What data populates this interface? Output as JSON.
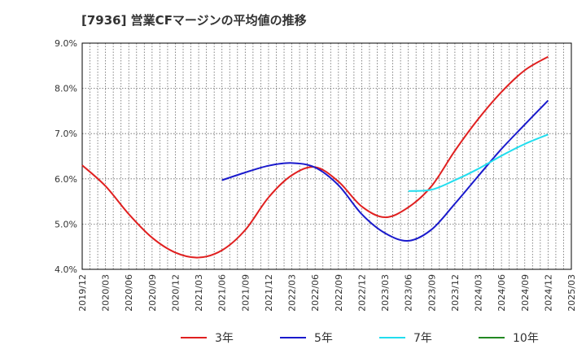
{
  "chart_data": {
    "type": "line",
    "title": "[7936]  営業CFマージンの平均値の推移",
    "xlabel": "",
    "ylabel": "",
    "x_ticks": [
      "2019/12",
      "2020/03",
      "2020/06",
      "2020/09",
      "2020/12",
      "2021/03",
      "2021/06",
      "2021/09",
      "2021/12",
      "2022/03",
      "2022/06",
      "2022/09",
      "2022/12",
      "2023/03",
      "2023/06",
      "2023/09",
      "2023/12",
      "2024/03",
      "2024/06",
      "2024/09",
      "2024/12",
      "2025/03"
    ],
    "y_ticks": [
      "4.0%",
      "5.0%",
      "6.0%",
      "7.0%",
      "8.0%",
      "9.0%"
    ],
    "ylim": [
      4.0,
      9.0
    ],
    "grid": true,
    "legend_position": "bottom",
    "series": [
      {
        "name": "3年",
        "color": "#e02020",
        "points": [
          [
            "2019/12",
            6.3
          ],
          [
            "2020/03",
            5.84
          ],
          [
            "2020/06",
            5.22
          ],
          [
            "2020/09",
            4.7
          ],
          [
            "2020/12",
            4.37
          ],
          [
            "2021/03",
            4.26
          ],
          [
            "2021/06",
            4.42
          ],
          [
            "2021/09",
            4.87
          ],
          [
            "2021/12",
            5.59
          ],
          [
            "2022/03",
            6.08
          ],
          [
            "2022/06",
            6.26
          ],
          [
            "2022/09",
            5.94
          ],
          [
            "2022/12",
            5.39
          ],
          [
            "2023/03",
            5.15
          ],
          [
            "2023/06",
            5.37
          ],
          [
            "2023/09",
            5.84
          ],
          [
            "2023/12",
            6.62
          ],
          [
            "2024/03",
            7.32
          ],
          [
            "2024/06",
            7.92
          ],
          [
            "2024/09",
            8.4
          ],
          [
            "2024/12",
            8.7
          ]
        ]
      },
      {
        "name": "5年",
        "color": "#1a1acc",
        "points": [
          [
            "2021/06",
            5.97
          ],
          [
            "2021/09",
            6.14
          ],
          [
            "2021/12",
            6.29
          ],
          [
            "2022/03",
            6.35
          ],
          [
            "2022/06",
            6.25
          ],
          [
            "2022/09",
            5.86
          ],
          [
            "2022/12",
            5.22
          ],
          [
            "2023/03",
            4.8
          ],
          [
            "2023/06",
            4.63
          ],
          [
            "2023/09",
            4.88
          ],
          [
            "2023/12",
            5.45
          ],
          [
            "2024/03",
            6.06
          ],
          [
            "2024/06",
            6.66
          ],
          [
            "2024/09",
            7.2
          ],
          [
            "2024/12",
            7.73
          ]
        ]
      },
      {
        "name": "7年",
        "color": "#22ddee",
        "points": [
          [
            "2023/06",
            5.73
          ],
          [
            "2023/09",
            5.76
          ],
          [
            "2023/12",
            5.97
          ],
          [
            "2024/03",
            6.22
          ],
          [
            "2024/06",
            6.51
          ],
          [
            "2024/09",
            6.77
          ],
          [
            "2024/12",
            6.98
          ]
        ]
      },
      {
        "name": "10年",
        "color": "#228822",
        "points": []
      }
    ]
  }
}
